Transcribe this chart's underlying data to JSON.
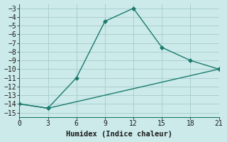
{
  "line1_x": [
    0,
    3,
    6,
    9,
    12,
    15,
    18,
    21
  ],
  "line1_y": [
    -14,
    -14.5,
    -11,
    -4.5,
    -3,
    -7.5,
    -9,
    -10
  ],
  "line2_x": [
    0,
    3,
    21
  ],
  "line2_y": [
    -14,
    -14.5,
    -10
  ],
  "color": "#1a7a6e",
  "bg_color": "#cceaea",
  "grid_color": "#aacfcf",
  "xlabel": "Humidex (Indice chaleur)",
  "xlim": [
    0,
    21
  ],
  "ylim": [
    -15.5,
    -2.5
  ],
  "xticks": [
    0,
    3,
    6,
    9,
    12,
    15,
    18,
    21
  ],
  "yticks": [
    -15,
    -14,
    -13,
    -12,
    -11,
    -10,
    -9,
    -8,
    -7,
    -6,
    -5,
    -4,
    -3
  ],
  "marker": "D",
  "markersize": 3.0,
  "linewidth": 1.0,
  "xlabel_fontsize": 7.5,
  "tick_fontsize": 7.0
}
